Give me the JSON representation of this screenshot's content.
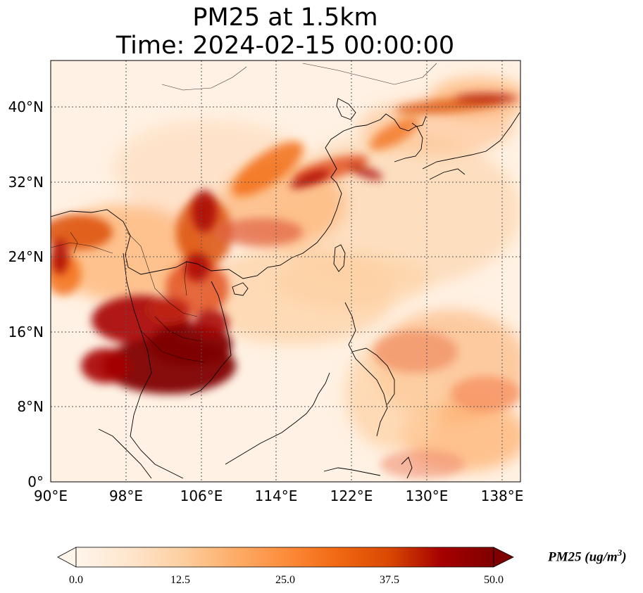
{
  "title": {
    "line1": "PM25 at 1.5km",
    "line2": "Time: 2024-02-15 00:00:00"
  },
  "map": {
    "projection": "PlateCarree",
    "lon_range": [
      90,
      140
    ],
    "lat_range": [
      0,
      45
    ],
    "gridlines": true,
    "lon_ticks": [
      {
        "value": 90,
        "label": "90°E"
      },
      {
        "value": 98,
        "label": "98°E"
      },
      {
        "value": 106,
        "label": "106°E"
      },
      {
        "value": 114,
        "label": "114°E"
      },
      {
        "value": 122,
        "label": "122°E"
      },
      {
        "value": 130,
        "label": "130°E"
      },
      {
        "value": 138,
        "label": "138°E"
      }
    ],
    "lat_ticks": [
      {
        "value": 0,
        "label": "0°"
      },
      {
        "value": 8,
        "label": "8°N"
      },
      {
        "value": 16,
        "label": "16°N"
      },
      {
        "value": 24,
        "label": "24°N"
      },
      {
        "value": 32,
        "label": "32°N"
      },
      {
        "value": 40,
        "label": "40°N"
      }
    ],
    "variable": "PM25",
    "high_concentration_areas": [
      "Thailand / Cambodia / Laos",
      "Myanmar",
      "Sichuan basin / central China",
      "Northeast India / Bangladesh",
      "Yellow Sea / Korea plume"
    ]
  },
  "colorbar": {
    "label_main": "PM25 (ug/m",
    "label_sup": "3",
    "label_end": ")",
    "range": [
      0,
      50
    ],
    "extend": "both",
    "ticks": [
      {
        "value": 0,
        "label": "0.0"
      },
      {
        "value": 12.5,
        "label": "12.5"
      },
      {
        "value": 25,
        "label": "25.0"
      },
      {
        "value": 37.5,
        "label": "37.5"
      },
      {
        "value": 50,
        "label": "50.0"
      }
    ],
    "colors": [
      "#fff5eb",
      "#fee6ce",
      "#fdd0a2",
      "#fdae6b",
      "#fd8d3c",
      "#f16913",
      "#d94801",
      "#a60000",
      "#7f0000"
    ]
  }
}
